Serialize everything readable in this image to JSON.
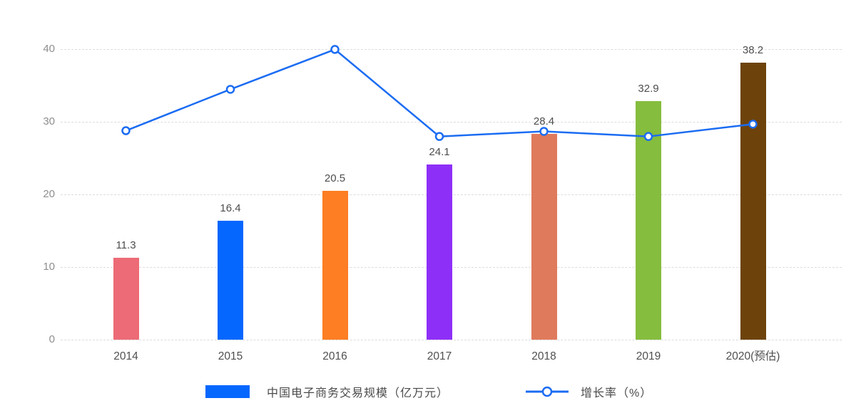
{
  "chart_data": {
    "type": "bar",
    "subtype": "bar-with-line-overlay",
    "categories": [
      "2014",
      "2015",
      "2016",
      "2017",
      "2018",
      "2019",
      "2020(预估)"
    ],
    "series": [
      {
        "name": "中国电子商务交易规模（亿万元）",
        "type": "bar",
        "values": [
          11.3,
          16.4,
          20.5,
          24.1,
          28.4,
          32.9,
          38.2
        ],
        "colors": [
          "#ec6b76",
          "#0567fe",
          "#fd7e23",
          "#8e2ff7",
          "#df7a5c",
          "#85bd3e",
          "#6d430b"
        ],
        "data_labels_shown": true
      },
      {
        "name": "增长率（%）",
        "type": "line",
        "values": [
          28.8,
          34.5,
          40.0,
          28.0,
          28.7,
          28.0,
          29.7
        ],
        "color": "#1b6cf2",
        "marker": "hollow-circle",
        "data_labels_shown": false
      }
    ],
    "title": "",
    "xlabel": "",
    "ylabel": "",
    "ylim": [
      0,
      40
    ],
    "yticks": [
      0,
      10,
      20,
      30,
      40
    ],
    "grid": {
      "horizontal": true,
      "style": "dashed",
      "color": "#dcdcdc"
    },
    "legend_position": "bottom",
    "background_color": "#ffffff",
    "y_tick_label_color": "#8e8e8e",
    "x_tick_label_color": "#4f4f4f",
    "bar_value_label_color": "#4d4d4d"
  }
}
